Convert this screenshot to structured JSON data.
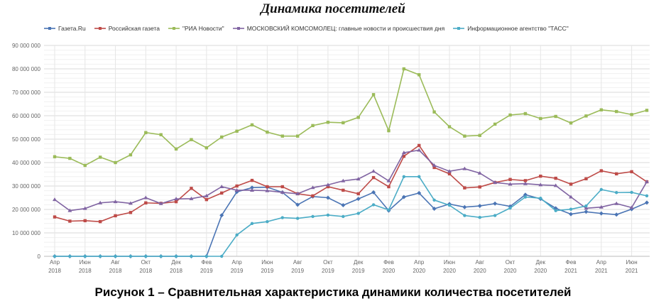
{
  "title": "Динамика посетителей",
  "caption": "Рисунок 1 – Сравнительная характеристика динамики количества посетителей",
  "chart_data": {
    "type": "line",
    "title": "Динамика посетителей",
    "xlabel": "",
    "ylabel": "",
    "ylim": [
      0,
      90000000
    ],
    "grid": true,
    "legend_position": "top",
    "yticks": [
      "0",
      "10 000 000",
      "20 000 000",
      "30 000 000",
      "40 000 000",
      "50 000 000",
      "60 000 000",
      "70 000 000",
      "80 000 000",
      "90 000 000"
    ],
    "xticks": [
      [
        "Апр",
        "2018"
      ],
      [
        "Июн",
        "2018"
      ],
      [
        "Авг",
        "2018"
      ],
      [
        "Окт",
        "2018"
      ],
      [
        "Дек",
        "2018"
      ],
      [
        "Фев",
        "2019"
      ],
      [
        "Апр",
        "2019"
      ],
      [
        "Июн",
        "2019"
      ],
      [
        "Авг",
        "2019"
      ],
      [
        "Окт",
        "2019"
      ],
      [
        "Дек",
        "2019"
      ],
      [
        "Фев",
        "2020"
      ],
      [
        "Апр",
        "2020"
      ],
      [
        "Июн",
        "2020"
      ],
      [
        "Авг",
        "2020"
      ],
      [
        "Окт",
        "2020"
      ],
      [
        "Дек",
        "2020"
      ],
      [
        "Фев",
        "2021"
      ],
      [
        "Апр",
        "2021"
      ],
      [
        "Июн",
        "2021"
      ]
    ],
    "x": [
      "2018-04",
      "2018-05",
      "2018-06",
      "2018-07",
      "2018-08",
      "2018-09",
      "2018-10",
      "2018-11",
      "2018-12",
      "2019-01",
      "2019-02",
      "2019-03",
      "2019-04",
      "2019-05",
      "2019-06",
      "2019-07",
      "2019-08",
      "2019-09",
      "2019-10",
      "2019-11",
      "2019-12",
      "2020-01",
      "2020-02",
      "2020-03",
      "2020-04",
      "2020-05",
      "2020-06",
      "2020-07",
      "2020-08",
      "2020-09",
      "2020-10",
      "2020-11",
      "2020-12",
      "2021-01",
      "2021-02",
      "2021-03",
      "2021-04",
      "2021-05",
      "2021-06",
      "2021-07"
    ],
    "unit": "millions",
    "series": [
      {
        "name": "Газета.Ru",
        "color": "#4a74b4",
        "marker": "diamond",
        "values": [
          0,
          0,
          0,
          0,
          0,
          0,
          0,
          0,
          0,
          0,
          0,
          17.5,
          27.5,
          29.3,
          29.5,
          27.3,
          22,
          25.5,
          25,
          21.8,
          24.5,
          27.3,
          19.5,
          25.3,
          27,
          20.3,
          22.3,
          21,
          21.5,
          22.5,
          21.3,
          26.3,
          24.5,
          20.5,
          18,
          19,
          18.3,
          17.8,
          20.1,
          22.9
        ]
      },
      {
        "name": "Российская газета",
        "color": "#be4b48",
        "marker": "square",
        "values": [
          16.8,
          15,
          15.2,
          14.8,
          17.3,
          18.7,
          22.8,
          22.6,
          23.3,
          29,
          24.2,
          27,
          30,
          32.4,
          29.7,
          29.7,
          26.7,
          25.8,
          29.7,
          28.2,
          26.7,
          33.6,
          29.7,
          42.7,
          47.3,
          37.9,
          35.2,
          29.2,
          29.6,
          31.5,
          32.8,
          32.3,
          34.2,
          33.3,
          30.8,
          33.1,
          36.5,
          35.2,
          36.1,
          31.8
        ]
      },
      {
        "name": "\"РИА Новости\"",
        "color": "#9bbb59",
        "marker": "square",
        "values": [
          42.5,
          41.8,
          38.8,
          42.3,
          40,
          43.3,
          52.8,
          51.9,
          45.8,
          49.8,
          46.3,
          50.9,
          53.4,
          56.1,
          53,
          51.3,
          51.3,
          55.8,
          57.2,
          57,
          59.3,
          69,
          53.6,
          80,
          77.5,
          61.6,
          55.3,
          51.3,
          51.6,
          56.4,
          60.3,
          60.9,
          58.8,
          59.7,
          56.9,
          59.9,
          62.5,
          61.8,
          60.5,
          62.3
        ]
      },
      {
        "name": "МОСКОВСКИЙ КОМСОМОЛЕЦ: главные новости и происшествия дня",
        "color": "#8064a2",
        "marker": "triangle",
        "values": [
          24.2,
          19.5,
          20.4,
          22.8,
          23.3,
          22.6,
          25,
          22.5,
          24.5,
          24.6,
          25.8,
          29.7,
          28.2,
          28.2,
          28,
          27.3,
          26.7,
          29.3,
          30.5,
          32.2,
          33,
          36.3,
          32.2,
          44.2,
          45.3,
          38.8,
          36.3,
          37.4,
          35.5,
          31.5,
          30.8,
          31,
          30.5,
          30.2,
          25.3,
          20.5,
          21,
          22.5,
          20.8,
          31.8
        ]
      },
      {
        "name": "Информационное агентство \"ТАСС\"",
        "color": "#4bacc6",
        "marker": "circle",
        "values": [
          0,
          0,
          0,
          0,
          0,
          0,
          0,
          0,
          0,
          0,
          0,
          0,
          9.1,
          14,
          14.8,
          16.5,
          16.2,
          17,
          17.6,
          17,
          18.3,
          22,
          19.8,
          34,
          34,
          24,
          21.8,
          17.4,
          16.6,
          17.4,
          20.6,
          25.3,
          24.8,
          19.5,
          20.1,
          21.5,
          28.5,
          27.2,
          27.3,
          25.8
        ]
      }
    ]
  }
}
